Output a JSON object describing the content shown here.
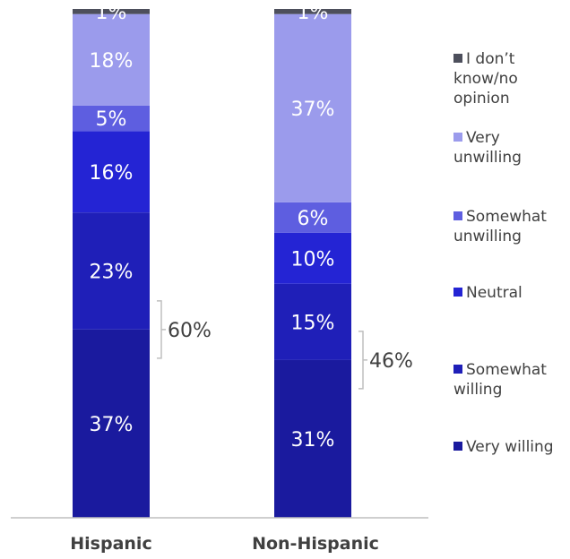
{
  "chart_data": {
    "type": "bar",
    "stacked": true,
    "categories": [
      "Hispanic",
      "Non-Hispanic"
    ],
    "series": [
      {
        "name": "Very willing",
        "color": "#1a1a9e",
        "values": [
          37,
          31
        ]
      },
      {
        "name": "Somewhat willing",
        "color": "#1f1fb8",
        "values": [
          23,
          15
        ]
      },
      {
        "name": "Neutral",
        "color": "#2424d4",
        "values": [
          16,
          10
        ]
      },
      {
        "name": "Somewhat unwilling",
        "color": "#5e5ee0",
        "values": [
          5,
          6
        ]
      },
      {
        "name": "Very unwilling",
        "color": "#9b9bec",
        "values": [
          18,
          37
        ]
      },
      {
        "name": "I don’t know/no opinion",
        "color": "#4d4f5c",
        "values": [
          1,
          1
        ]
      }
    ],
    "data_labels": [
      [
        "37%",
        "31%"
      ],
      [
        "23%",
        "15%"
      ],
      [
        "16%",
        "10%"
      ],
      [
        "5%",
        "6%"
      ],
      [
        "18%",
        "37%"
      ],
      [
        "1%",
        "1%"
      ]
    ],
    "brace_labels": [
      "60%",
      "46%"
    ],
    "legend_position": "right",
    "grid": false,
    "ylim": [
      0,
      100
    ]
  },
  "legend": [
    {
      "label": "I don’t know/no opinion",
      "color": "#4d4f5c"
    },
    {
      "label": "Very unwilling",
      "color": "#9b9bec"
    },
    {
      "label": "Somewhat unwilling",
      "color": "#5e5ee0"
    },
    {
      "label": "Neutral",
      "color": "#2424d4"
    },
    {
      "label": "Somewhat willing",
      "color": "#1f1fb8"
    },
    {
      "label": "Very willing",
      "color": "#1a1a9e"
    }
  ]
}
